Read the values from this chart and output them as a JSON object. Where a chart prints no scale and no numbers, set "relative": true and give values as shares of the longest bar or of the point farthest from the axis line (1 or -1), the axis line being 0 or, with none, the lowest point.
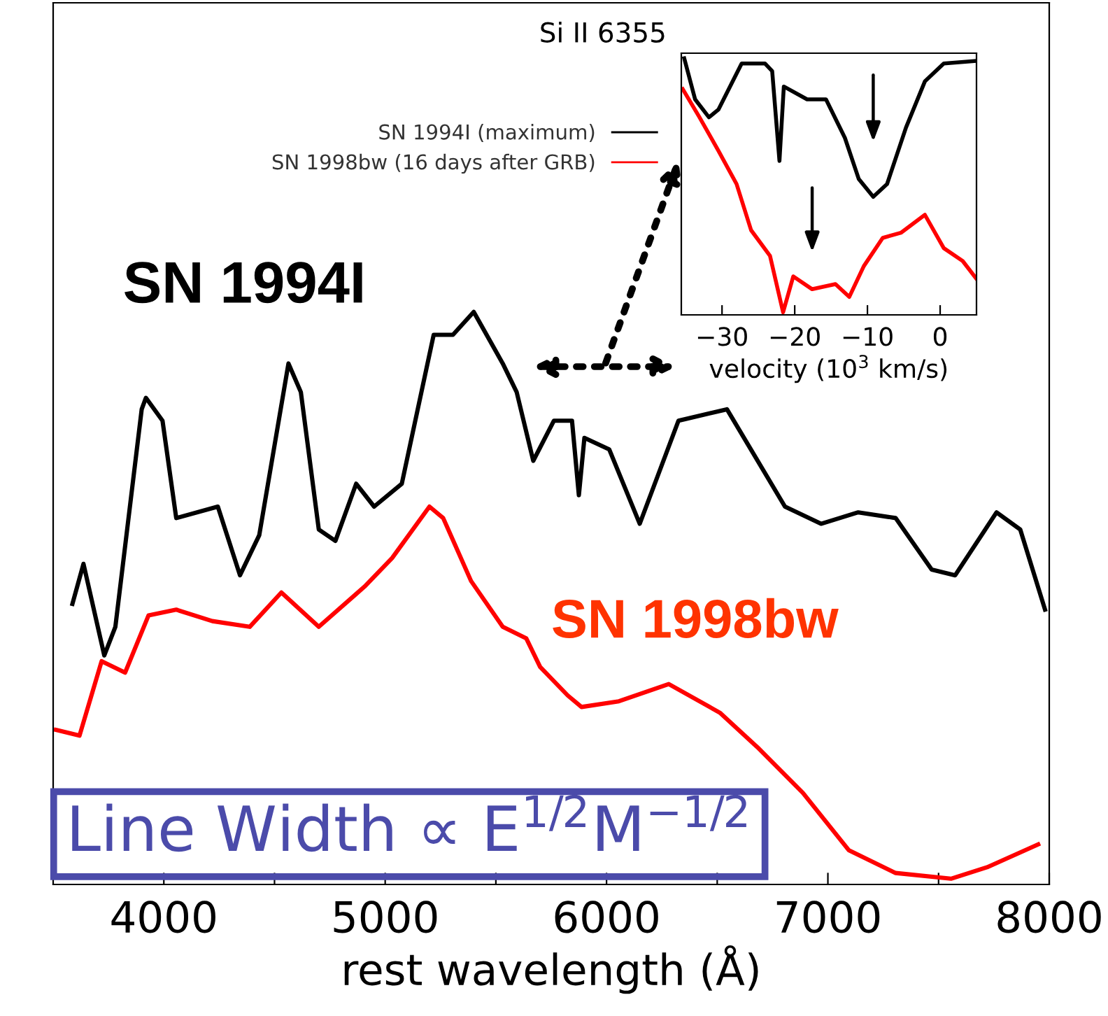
{
  "chart_data": [
    {
      "type": "line",
      "xlabel": "rest wavelength (Å)",
      "xlim": [
        3500,
        8000
      ],
      "xticks": [
        4000,
        {
          "value": 4500,
          "label": null
        },
        5000,
        {
          "value": 5500,
          "label": null
        },
        6000,
        {
          "value": 6500,
          "label": null
        },
        7000,
        {
          "value": 7500,
          "label": null
        },
        8000
      ],
      "relative": true,
      "grid": false,
      "series": [
        {
          "name": "SN 1994I",
          "color": "#000000",
          "x": [
            3587,
            3637,
            3731,
            3781,
            3900,
            3919,
            3994,
            4056,
            4244,
            4344,
            4431,
            4563,
            4619,
            4700,
            4775,
            4869,
            4950,
            5075,
            5219,
            5306,
            5400,
            5531,
            5594,
            5669,
            5762,
            5844,
            5875,
            5900,
            6012,
            6150,
            6325,
            6544,
            6806,
            6969,
            7137,
            7306,
            7469,
            7575,
            7762,
            7869,
            7981
          ],
          "values": [
            0.49,
            0.56,
            0.4,
            0.45,
            0.83,
            0.85,
            0.81,
            0.64,
            0.66,
            0.54,
            0.61,
            0.91,
            0.86,
            0.62,
            0.6,
            0.7,
            0.66,
            0.7,
            0.96,
            0.96,
            1.0,
            0.91,
            0.86,
            0.74,
            0.81,
            0.81,
            0.68,
            0.78,
            0.76,
            0.63,
            0.81,
            0.83,
            0.66,
            0.63,
            0.65,
            0.64,
            0.55,
            0.54,
            0.65,
            0.62,
            0.48
          ]
        },
        {
          "name": "SN 1998bw",
          "color": "#ff0000",
          "x": [
            3512,
            3619,
            3719,
            3825,
            3931,
            4056,
            4219,
            4388,
            4531,
            4700,
            4906,
            5031,
            5200,
            5262,
            5388,
            5531,
            5637,
            5700,
            5825,
            5887,
            6056,
            6281,
            6512,
            6681,
            6887,
            7094,
            7306,
            7556,
            7719,
            7950
          ],
          "values": [
            0.27,
            0.26,
            0.39,
            0.37,
            0.47,
            0.48,
            0.46,
            0.45,
            0.51,
            0.45,
            0.52,
            0.57,
            0.66,
            0.64,
            0.53,
            0.45,
            0.43,
            0.38,
            0.33,
            0.31,
            0.32,
            0.35,
            0.3,
            0.24,
            0.16,
            0.06,
            0.02,
            0.01,
            0.03,
            0.07
          ]
        }
      ],
      "annotations": [
        "Line Width ∝ E$^{1/2}$M$^{−1/2}$"
      ]
    },
    {
      "type": "line",
      "title": "Si II 6355",
      "xlabel": "velocity (10$^{3}$ km/s)",
      "xlim": [
        -35.6,
        5
      ],
      "xticks": [
        {
          "value": -30,
          "label": "−30"
        },
        {
          "value": -20,
          "label": "−20"
        },
        {
          "value": -10,
          "label": "−10"
        },
        0
      ],
      "relative": true,
      "grid": false,
      "legend": "left",
      "series": [
        {
          "name": "SN 1994I (maximum)",
          "color": "#000000",
          "x": [
            -35.2,
            -33.7,
            -31.8,
            -30.5,
            -27.3,
            -24.1,
            -23.1,
            -22.1,
            -21.5,
            -18.3,
            -15.7,
            -13.1,
            -11.2,
            -9.2,
            -7.3,
            -4.7,
            -2.1,
            0.5,
            5.0
          ],
          "values": [
            1.0,
            0.84,
            0.77,
            0.8,
            0.98,
            0.98,
            0.95,
            0.6,
            0.89,
            0.84,
            0.84,
            0.69,
            0.53,
            0.46,
            0.51,
            0.73,
            0.91,
            0.98,
            0.99
          ]
        },
        {
          "name": "SN 1998bw (16 days after GRB)",
          "color": "#ff0000",
          "x": [
            -35.4,
            -33.1,
            -30.5,
            -28.0,
            -26.0,
            -23.4,
            -21.6,
            -20.2,
            -17.6,
            -14.4,
            -12.5,
            -10.5,
            -7.9,
            -5.4,
            -2.1,
            0.5,
            3.1,
            5.0
          ],
          "values": [
            0.88,
            0.77,
            0.64,
            0.51,
            0.33,
            0.23,
            0.01,
            0.15,
            0.1,
            0.12,
            0.07,
            0.19,
            0.3,
            0.32,
            0.39,
            0.26,
            0.21,
            0.14
          ]
        }
      ]
    }
  ]
}
